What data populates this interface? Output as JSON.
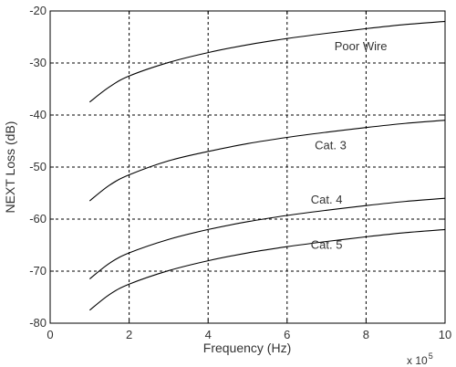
{
  "chart_data": {
    "type": "line",
    "title": "",
    "xlabel": "Frequency (Hz)",
    "ylabel": "NEXT Loss (dB)",
    "x_multiplier": {
      "base": "x 10",
      "exponent": "5"
    },
    "xlim": [
      0,
      10
    ],
    "ylim": [
      -80,
      -20
    ],
    "xticks": [
      0,
      2,
      4,
      6,
      8,
      10
    ],
    "yticks": [
      -80,
      -70,
      -60,
      -50,
      -40,
      -30,
      -20
    ],
    "grid": true,
    "series": [
      {
        "name": "Poor Wire",
        "x": [
          1,
          1.5,
          2,
          3,
          4,
          5,
          6,
          7,
          8,
          9,
          10
        ],
        "y": [
          -37.5,
          -34.6,
          -32.5,
          -29.9,
          -28.0,
          -26.5,
          -25.3,
          -24.3,
          -23.4,
          -22.6,
          -22.0
        ]
      },
      {
        "name": "Cat. 3",
        "x": [
          1,
          1.5,
          2,
          3,
          4,
          5,
          6,
          7,
          8,
          9,
          10
        ],
        "y": [
          -56.5,
          -53.5,
          -51.5,
          -48.8,
          -47.0,
          -45.5,
          -44.3,
          -43.3,
          -42.4,
          -41.6,
          -41.0
        ]
      },
      {
        "name": "Cat. 4",
        "x": [
          1,
          1.5,
          2,
          3,
          4,
          5,
          6,
          7,
          8,
          9,
          10
        ],
        "y": [
          -71.5,
          -68.5,
          -66.5,
          -63.9,
          -62.0,
          -60.5,
          -59.3,
          -58.3,
          -57.4,
          -56.6,
          -56.0
        ]
      },
      {
        "name": "Cat. 5",
        "x": [
          1,
          1.5,
          2,
          3,
          4,
          5,
          6,
          7,
          8,
          9,
          10
        ],
        "y": [
          -77.5,
          -74.5,
          -72.5,
          -69.9,
          -68.0,
          -66.5,
          -65.3,
          -64.3,
          -63.4,
          -62.6,
          -62.0
        ]
      }
    ],
    "series_label_anchors": [
      {
        "x": 7.2,
        "y": -27.5
      },
      {
        "x": 6.7,
        "y": -46.6
      },
      {
        "x": 6.6,
        "y": -57.0
      },
      {
        "x": 6.6,
        "y": -65.7
      }
    ]
  }
}
